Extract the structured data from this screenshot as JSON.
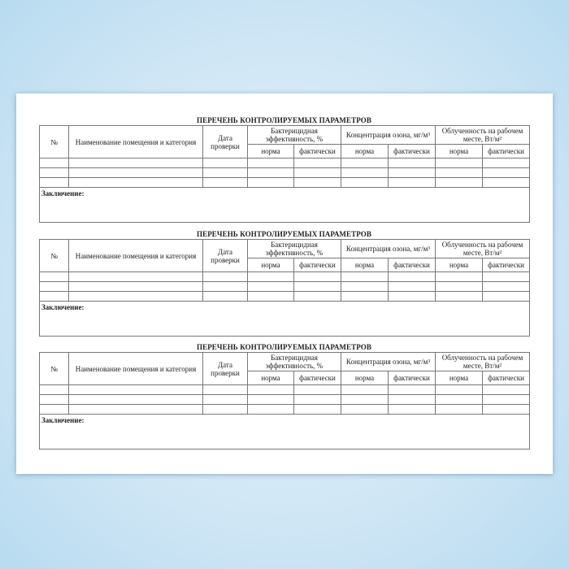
{
  "tables": [
    {
      "title": "ПЕРЕЧЕНЬ КОНТРОЛИРУЕМЫХ ПАРАМЕТРОВ",
      "conclusion": "Заключение:"
    },
    {
      "title": "ПЕРЕЧЕНЬ КОНТРОЛИРУЕМЫХ ПАРАМЕТРОВ",
      "conclusion": "Заключение:"
    },
    {
      "title": "ПЕРЕЧЕНЬ КОНТРОЛИРУЕМЫХ ПАРАМЕТРОВ",
      "conclusion": "Заключение:"
    }
  ],
  "headers": {
    "number": "№",
    "room": "Наименование помещения и категория",
    "date": "Дата проверки",
    "bactericidal": "Бактерицидная эффективность, %",
    "ozone": "Концентрация озона, мг/м³",
    "irradiance": "Облученность на рабочем месте, Вт/м²",
    "norm": "норма",
    "actual": "фактически"
  },
  "empty_rows": 3
}
